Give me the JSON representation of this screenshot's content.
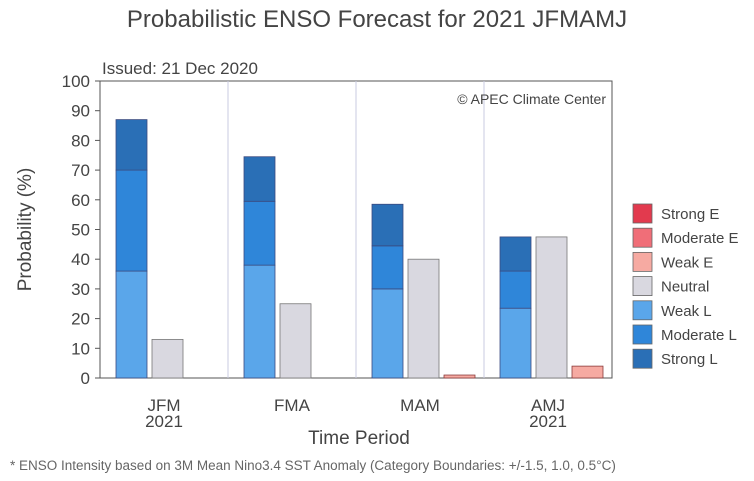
{
  "title": "Probabilistic ENSO Forecast for 2021 JFMAMJ",
  "issued": "Issued: 21 Dec 2020",
  "copyright": "© APEC Climate Center",
  "footnote": "* ENSO Intensity based on 3M Mean Nino3.4 SST Anomaly (Category Boundaries: +/-1.5, 1.0, 0.5°C)",
  "chart_data": {
    "type": "bar",
    "subtype": "stacked-grouped",
    "xlabel": "Time Period",
    "ylabel": "Probability (%)",
    "ylim": [
      0,
      100
    ],
    "yticks": [
      0,
      10,
      20,
      30,
      40,
      50,
      60,
      70,
      80,
      90,
      100
    ],
    "grid": "vertical separators between periods",
    "legend_position": "right",
    "categories": [
      {
        "label": "JFM",
        "sublabel": "2021"
      },
      {
        "label": "FMA",
        "sublabel": ""
      },
      {
        "label": "MAM",
        "sublabel": ""
      },
      {
        "label": "AMJ",
        "sublabel": "2021"
      }
    ],
    "legend": [
      {
        "name": "Strong E",
        "color": "#e23a4e"
      },
      {
        "name": "Moderate E",
        "color": "#f06e78"
      },
      {
        "name": "Weak E",
        "color": "#f6aaa2"
      },
      {
        "name": "Neutral",
        "color": "#d9d8e0"
      },
      {
        "name": "Weak L",
        "color": "#5aa6ea"
      },
      {
        "name": "Moderate L",
        "color": "#2f86d9"
      },
      {
        "name": "Strong L",
        "color": "#2a6fb6"
      }
    ],
    "series": [
      {
        "name": "Weak L",
        "values": [
          36,
          38,
          30,
          23.5
        ]
      },
      {
        "name": "Moderate L",
        "values": [
          34,
          21.5,
          14.5,
          12.5
        ]
      },
      {
        "name": "Strong L",
        "values": [
          17,
          15,
          14,
          11.5
        ]
      },
      {
        "name": "Neutral",
        "values": [
          13,
          25,
          40,
          47.5
        ]
      },
      {
        "name": "Weak E",
        "values": [
          0,
          0,
          1,
          4
        ]
      },
      {
        "name": "Moderate E",
        "values": [
          0,
          0,
          0,
          0
        ]
      },
      {
        "name": "Strong E",
        "values": [
          0,
          0,
          0,
          0
        ]
      }
    ]
  }
}
